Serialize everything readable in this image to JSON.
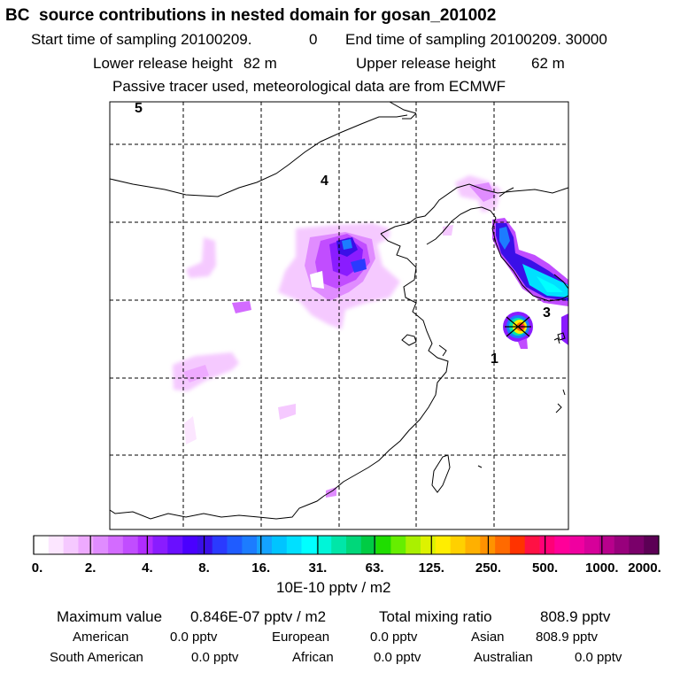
{
  "header": {
    "title": "BC  source contributions in nested domain for gosan_201002",
    "start_label": "Start time of sampling 20100209.",
    "start_value": "0",
    "end_label": "End time of sampling 20100209. 30000",
    "lower_label": "Lower release height",
    "lower_value": "82 m",
    "upper_label": "Upper release height",
    "upper_value": "62 m",
    "note": "Passive tracer used, meteorological data are from ECMWF"
  },
  "map": {
    "region_labels": [
      "5",
      "4",
      "3",
      "1"
    ]
  },
  "colorbar": {
    "labels": [
      "0.",
      "2.",
      "4.",
      "8.",
      "16.",
      "31.",
      "63.",
      "125.",
      "250.",
      "500.",
      "1000.",
      "2000."
    ],
    "unit": "10E-10 pptv / m2",
    "colors": [
      "#ffffff",
      "#fce6ff",
      "#f5c9ff",
      "#eeaaff",
      "#e08cff",
      "#d36bff",
      "#c14dff",
      "#b02cff",
      "#8a1cff",
      "#6a0fff",
      "#4a00ff",
      "#3a0fe8",
      "#2a3aff",
      "#1f5cff",
      "#1c7cff",
      "#14a3ff",
      "#00c4ff",
      "#00e0ff",
      "#00ffff",
      "#00f5d8",
      "#00e6a8",
      "#00d77a",
      "#00cc44",
      "#1fdd00",
      "#66ee00",
      "#aaf000",
      "#ddf200",
      "#ffee00",
      "#ffd000",
      "#ffb000",
      "#ff9200",
      "#ff6a00",
      "#ff3300",
      "#ff1144",
      "#ff0077",
      "#ff0099",
      "#f000a0",
      "#d6009a",
      "#b8008c",
      "#98007c",
      "#7a006a",
      "#5c0055"
    ]
  },
  "stats": {
    "max_label": "Maximum value",
    "max_value": "0.846E-07 pptv / m2",
    "total_label": "Total mixing ratio",
    "total_value": "808.9 pptv",
    "american_label": "American",
    "american_value": "0.0 pptv",
    "european_label": "European",
    "european_value": "0.0 pptv",
    "asian_label": "Asian",
    "asian_value": "808.9 pptv",
    "south_american_label": "South American",
    "south_american_value": "0.0 pptv",
    "african_label": "African",
    "african_value": "0.0 pptv",
    "australian_label": "Australian",
    "australian_value": "0.0 pptv"
  }
}
